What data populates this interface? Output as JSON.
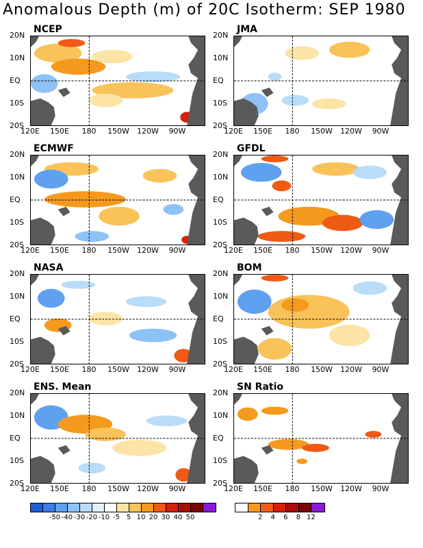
{
  "title": "Anomalous Depth (m) of 20C Isotherm: SEP 1980",
  "lat_labels": [
    "20N",
    "10N",
    "EQ",
    "10S",
    "20S"
  ],
  "lon_labels": [
    "120E",
    "150E",
    "180",
    "150W",
    "120W",
    "90W"
  ],
  "panels": [
    {
      "name": "NCEP"
    },
    {
      "name": "JMA"
    },
    {
      "name": "ECMWF"
    },
    {
      "name": "GFDL"
    },
    {
      "name": "NASA"
    },
    {
      "name": "BOM"
    },
    {
      "name": "ENS. Mean"
    },
    {
      "name": "SN Ratio"
    }
  ],
  "colorbar_left": {
    "colors": [
      "#1f5fd6",
      "#3c7fe6",
      "#5fa0f0",
      "#8ec1f5",
      "#b9dcf8",
      "#dff0fb",
      "#ffffff",
      "#fce4a6",
      "#f9c35a",
      "#f59a1e",
      "#ef5a14",
      "#d4200c",
      "#a80f0a",
      "#7a0505",
      "#8a1ad8"
    ],
    "labels": [
      "-50",
      "-40",
      "-30",
      "-20",
      "-10",
      "-5",
      "5",
      "10",
      "20",
      "30",
      "40",
      "50"
    ]
  },
  "colorbar_right": {
    "colors": [
      "#ffffff",
      "#f59a1e",
      "#ef5a14",
      "#d4200c",
      "#a80f0a",
      "#7a0505",
      "#8a1ad8"
    ],
    "labels": [
      "2",
      "4",
      "6",
      "8",
      "12"
    ]
  }
}
